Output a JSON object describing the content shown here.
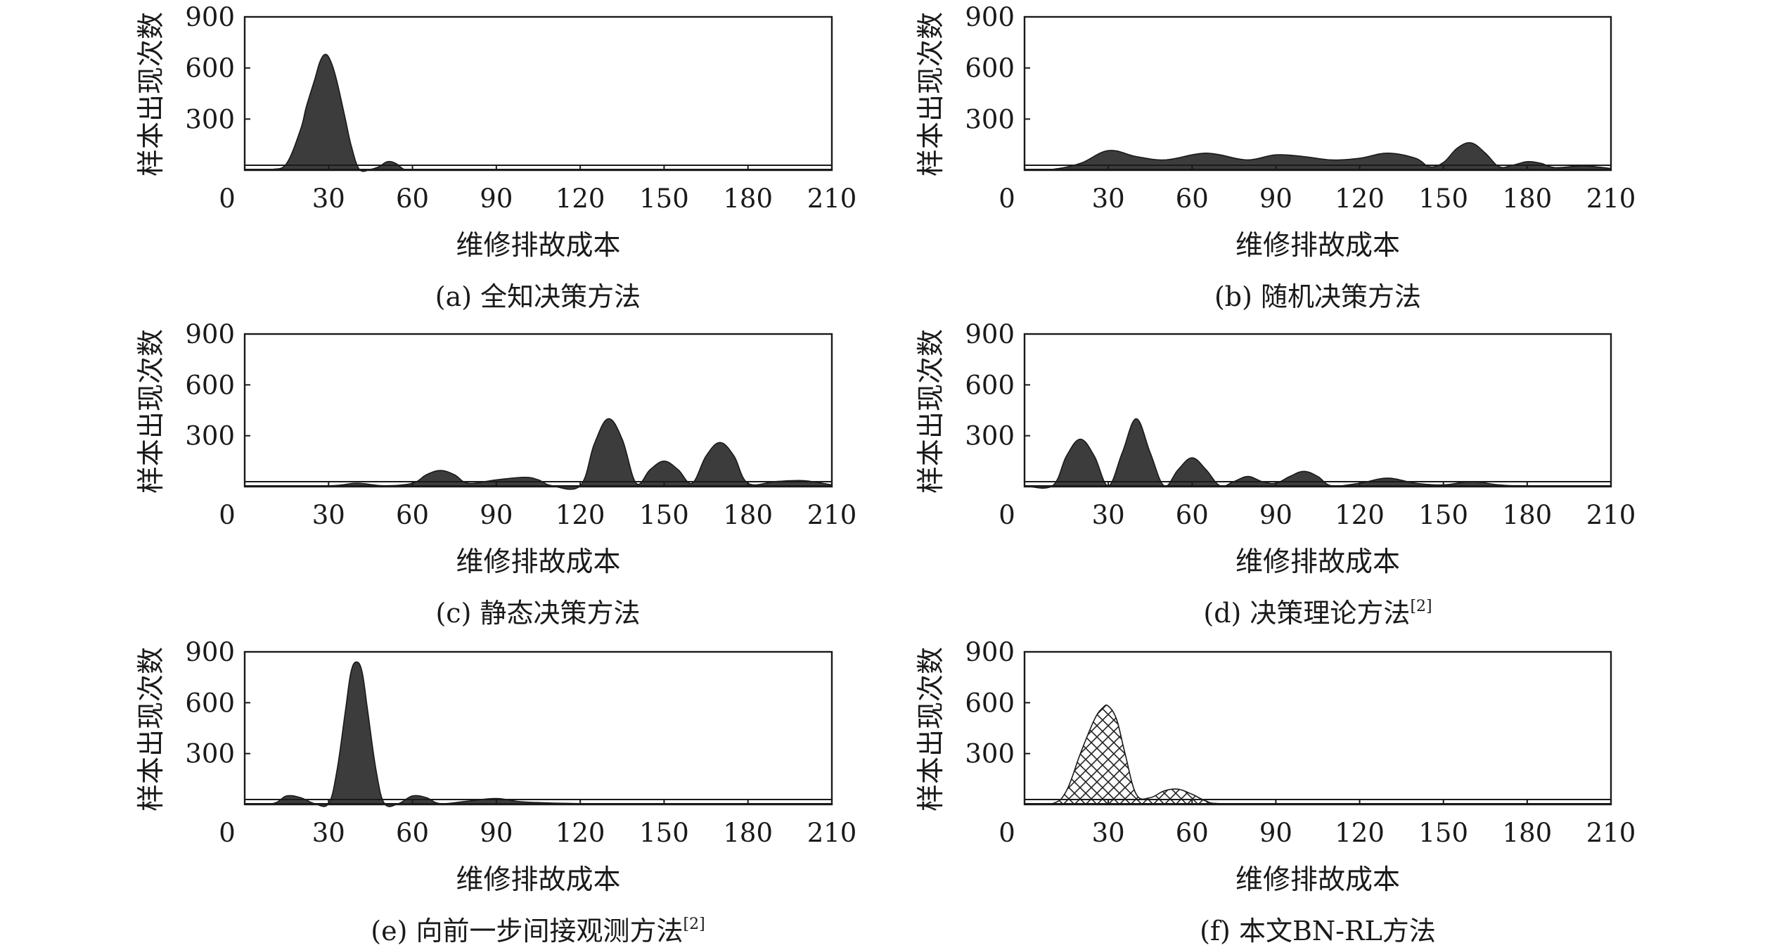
{
  "chart_data": [
    {
      "type": "area",
      "caption": "(a) 全知决策方法",
      "caption_sup": "",
      "xlabel": "维修排故成本",
      "ylabel": "样本出现次数",
      "xlim": [
        0,
        210
      ],
      "ylim": [
        0,
        900
      ],
      "xticks": [
        0,
        30,
        60,
        90,
        120,
        150,
        180,
        210
      ],
      "yticks": [
        300,
        600,
        900
      ],
      "fill": "solid",
      "x": [
        0,
        5,
        10,
        15,
        20,
        22,
        25,
        27,
        29,
        31,
        33,
        36,
        38,
        41,
        45,
        48,
        51,
        54,
        57,
        60,
        90,
        120,
        150,
        180,
        210
      ],
      "y": [
        5,
        5,
        5,
        40,
        240,
        370,
        530,
        640,
        680,
        630,
        520,
        300,
        150,
        5,
        5,
        20,
        50,
        40,
        5,
        5,
        5,
        5,
        5,
        5,
        5
      ]
    },
    {
      "type": "area",
      "caption": "(b) 随机决策方法",
      "caption_sup": "",
      "xlabel": "维修排故成本",
      "ylabel": "样本出现次数",
      "xlim": [
        0,
        210
      ],
      "ylim": [
        0,
        900
      ],
      "xticks": [
        0,
        30,
        60,
        90,
        120,
        150,
        180,
        210
      ],
      "yticks": [
        300,
        600,
        900
      ],
      "fill": "solid",
      "x": [
        0,
        10,
        20,
        30,
        40,
        50,
        60,
        65,
        70,
        80,
        90,
        100,
        110,
        120,
        130,
        140,
        145,
        150,
        155,
        160,
        165,
        170,
        175,
        180,
        185,
        190,
        200,
        210
      ],
      "y": [
        5,
        5,
        40,
        115,
        80,
        60,
        90,
        100,
        90,
        60,
        90,
        80,
        60,
        70,
        100,
        70,
        20,
        45,
        130,
        160,
        100,
        20,
        30,
        50,
        40,
        15,
        25,
        10
      ]
    },
    {
      "type": "area",
      "caption": "(c) 静态决策方法",
      "caption_sup": "",
      "xlabel": "维修排故成本",
      "ylabel": "样本出现次数",
      "xlim": [
        0,
        210
      ],
      "ylim": [
        0,
        900
      ],
      "xticks": [
        0,
        30,
        60,
        90,
        120,
        150,
        180,
        210
      ],
      "yticks": [
        300,
        600,
        900
      ],
      "fill": "solid",
      "x": [
        0,
        30,
        40,
        50,
        60,
        65,
        70,
        75,
        80,
        90,
        100,
        105,
        110,
        120,
        125,
        130,
        135,
        140,
        145,
        150,
        155,
        160,
        165,
        170,
        175,
        180,
        190,
        200,
        210
      ],
      "y": [
        5,
        5,
        20,
        5,
        20,
        70,
        95,
        70,
        20,
        40,
        55,
        40,
        5,
        5,
        250,
        400,
        280,
        20,
        100,
        150,
        100,
        20,
        180,
        260,
        180,
        20,
        30,
        35,
        10
      ]
    },
    {
      "type": "area",
      "caption": "(d) 决策理论方法",
      "caption_sup": "[2]",
      "xlabel": "维修排故成本",
      "ylabel": "样本出现次数",
      "xlim": [
        0,
        210
      ],
      "ylim": [
        0,
        900
      ],
      "xticks": [
        0,
        30,
        60,
        90,
        120,
        150,
        180,
        210
      ],
      "yticks": [
        300,
        600,
        900
      ],
      "fill": "solid",
      "x": [
        0,
        10,
        15,
        20,
        25,
        30,
        35,
        40,
        45,
        50,
        55,
        60,
        65,
        70,
        75,
        80,
        85,
        90,
        95,
        100,
        105,
        110,
        120,
        130,
        140,
        150,
        160,
        170,
        180,
        210
      ],
      "y": [
        5,
        5,
        180,
        280,
        180,
        5,
        200,
        400,
        200,
        5,
        100,
        170,
        100,
        5,
        30,
        60,
        30,
        20,
        60,
        90,
        60,
        5,
        20,
        50,
        20,
        10,
        30,
        10,
        5,
        5
      ]
    },
    {
      "type": "area",
      "caption": "(e) 向前一步间接观测方法",
      "caption_sup": "[2]",
      "xlabel": "维修排故成本",
      "ylabel": "样本出现次数",
      "xlim": [
        0,
        210
      ],
      "ylim": [
        0,
        900
      ],
      "xticks": [
        0,
        30,
        60,
        90,
        120,
        150,
        180,
        210
      ],
      "yticks": [
        300,
        600,
        900
      ],
      "fill": "solid",
      "x": [
        0,
        10,
        15,
        20,
        25,
        30,
        33,
        36,
        38,
        40,
        42,
        44,
        47,
        50,
        55,
        60,
        65,
        70,
        80,
        90,
        100,
        120,
        150,
        180,
        210
      ],
      "y": [
        5,
        5,
        50,
        40,
        5,
        5,
        200,
        550,
        780,
        840,
        780,
        550,
        200,
        5,
        5,
        50,
        40,
        5,
        20,
        35,
        15,
        5,
        5,
        5,
        5
      ]
    },
    {
      "type": "area",
      "caption": "(f) 本文BN-RL方法",
      "caption_sup": "",
      "xlabel": "维修排故成本",
      "ylabel": "样本出现次数",
      "xlim": [
        0,
        210
      ],
      "ylim": [
        0,
        900
      ],
      "xticks": [
        0,
        30,
        60,
        90,
        120,
        150,
        180,
        210
      ],
      "yticks": [
        300,
        600,
        900
      ],
      "fill": "crosshatch",
      "x": [
        0,
        10,
        15,
        20,
        25,
        28,
        30,
        33,
        36,
        40,
        45,
        50,
        55,
        60,
        65,
        70,
        90,
        120,
        150,
        180,
        210
      ],
      "y": [
        5,
        5,
        80,
        300,
        500,
        570,
        580,
        500,
        300,
        60,
        40,
        80,
        90,
        60,
        20,
        5,
        5,
        5,
        5,
        5,
        5
      ]
    }
  ],
  "style": {
    "fill_color": "#3c3c3c",
    "line_color": "#1a1a1a",
    "hatch_color": "#222222"
  }
}
